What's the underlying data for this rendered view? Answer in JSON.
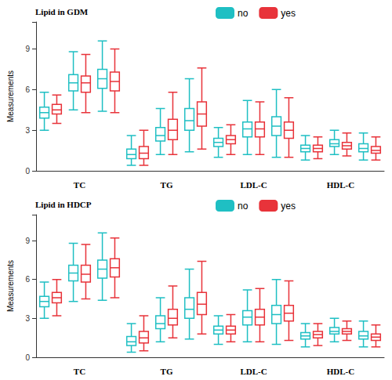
{
  "chart_data": [
    {
      "type": "boxplot",
      "title": "Lipid in GDM",
      "ylabel": "Measurements",
      "categories": [
        null,
        "TC",
        null,
        null,
        "TG",
        null,
        null,
        "LDL-C",
        null,
        null,
        "HDL-C",
        null
      ],
      "ylim": [
        0,
        11
      ],
      "yticks": [
        0,
        3,
        6,
        9
      ],
      "grid": false,
      "legend": "top",
      "series": [
        {
          "name": "no",
          "color": "#1fbfc3",
          "values": [
            [
              3.0,
              3.9,
              4.3,
              4.7,
              5.8
            ],
            [
              4.5,
              5.9,
              6.5,
              7.1,
              8.8
            ],
            [
              4.4,
              6.1,
              6.8,
              7.5,
              9.6
            ],
            [
              0.4,
              0.9,
              1.2,
              1.6,
              2.6
            ],
            [
              1.2,
              2.2,
              2.6,
              3.2,
              4.6
            ],
            [
              1.4,
              3.0,
              3.7,
              4.6,
              6.8
            ],
            [
              1.0,
              1.8,
              2.1,
              2.4,
              3.2
            ],
            [
              1.2,
              2.5,
              3.1,
              3.6,
              5.2
            ],
            [
              1.0,
              2.6,
              3.3,
              4.0,
              6.0
            ],
            [
              0.8,
              1.4,
              1.65,
              1.9,
              2.6
            ],
            [
              1.2,
              1.8,
              2.0,
              2.3,
              3.0
            ],
            [
              0.8,
              1.4,
              1.65,
              2.0,
              2.8
            ]
          ]
        },
        {
          "name": "yes",
          "color": "#e8333a",
          "values": [
            [
              3.5,
              4.2,
              4.5,
              4.9,
              5.6
            ],
            [
              4.3,
              5.8,
              6.5,
              7.0,
              8.6
            ],
            [
              4.3,
              5.9,
              6.6,
              7.3,
              9.0
            ],
            [
              0.4,
              0.9,
              1.3,
              1.8,
              3.0
            ],
            [
              1.2,
              2.3,
              3.0,
              3.8,
              5.8
            ],
            [
              1.6,
              3.3,
              4.2,
              5.1,
              7.6
            ],
            [
              1.2,
              2.0,
              2.3,
              2.6,
              3.4
            ],
            [
              1.2,
              2.5,
              3.1,
              3.6,
              5.1
            ],
            [
              1.0,
              2.4,
              3.0,
              3.6,
              5.4
            ],
            [
              0.9,
              1.4,
              1.65,
              1.9,
              2.5
            ],
            [
              1.1,
              1.6,
              1.85,
              2.1,
              2.8
            ],
            [
              0.8,
              1.3,
              1.5,
              1.8,
              2.5
            ]
          ]
        }
      ]
    },
    {
      "type": "boxplot",
      "title": "Lipid in HDCP",
      "ylabel": "Measurements",
      "categories": [
        null,
        "TC",
        null,
        null,
        "TG",
        null,
        null,
        "LDL-C",
        null,
        null,
        "HDL-C",
        null
      ],
      "ylim": [
        0,
        11
      ],
      "yticks": [
        0,
        3,
        6,
        9
      ],
      "grid": false,
      "legend": "top",
      "series": [
        {
          "name": "no",
          "color": "#1fbfc3",
          "values": [
            [
              3.0,
              3.9,
              4.3,
              4.7,
              5.8
            ],
            [
              4.3,
              5.9,
              6.5,
              7.1,
              8.8
            ],
            [
              4.4,
              6.1,
              6.8,
              7.5,
              9.6
            ],
            [
              0.4,
              0.9,
              1.2,
              1.6,
              2.6
            ],
            [
              1.2,
              2.2,
              2.6,
              3.2,
              4.6
            ],
            [
              1.4,
              3.0,
              3.7,
              4.6,
              6.8
            ],
            [
              1.0,
              1.8,
              2.1,
              2.4,
              3.2
            ],
            [
              1.2,
              2.5,
              3.1,
              3.6,
              5.2
            ],
            [
              1.0,
              2.6,
              3.3,
              4.0,
              6.0
            ],
            [
              0.8,
              1.4,
              1.65,
              1.9,
              2.6
            ],
            [
              1.2,
              1.8,
              2.0,
              2.3,
              3.0
            ],
            [
              0.8,
              1.4,
              1.65,
              2.0,
              2.8
            ]
          ]
        },
        {
          "name": "yes",
          "color": "#e8333a",
          "values": [
            [
              3.2,
              4.2,
              4.6,
              5.0,
              6.0
            ],
            [
              4.5,
              5.8,
              6.4,
              7.1,
              8.7
            ],
            [
              4.6,
              6.2,
              6.9,
              7.6,
              9.2
            ],
            [
              0.5,
              1.1,
              1.5,
              2.0,
              3.2
            ],
            [
              1.5,
              2.5,
              3.0,
              3.7,
              5.5
            ],
            [
              1.8,
              3.3,
              4.1,
              5.0,
              7.4
            ],
            [
              1.2,
              1.8,
              2.1,
              2.4,
              3.3
            ],
            [
              1.2,
              2.5,
              3.1,
              3.7,
              5.3
            ],
            [
              1.3,
              2.8,
              3.4,
              4.0,
              5.9
            ],
            [
              0.9,
              1.5,
              1.75,
              2.0,
              2.6
            ],
            [
              1.3,
              1.8,
              2.0,
              2.2,
              2.8
            ],
            [
              0.8,
              1.3,
              1.55,
              1.8,
              2.5
            ]
          ]
        }
      ]
    }
  ]
}
